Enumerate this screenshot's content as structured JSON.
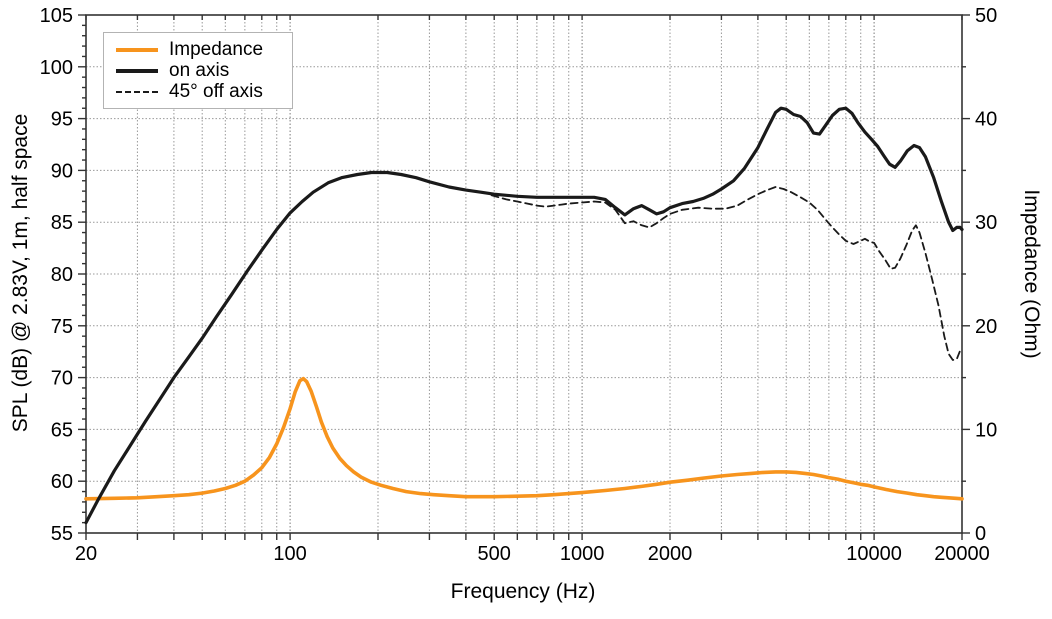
{
  "chart_data": {
    "type": "line",
    "title": "",
    "xlabel": "Frequency (Hz)",
    "ylabel_left": "SPL (dB) @ 2.83V, 1m, half space",
    "ylabel_right": "Impedance (Ohm)",
    "x_scale": "log",
    "xlim": [
      20,
      20000
    ],
    "ylim_left": [
      55,
      105
    ],
    "ylim_right": [
      0,
      50
    ],
    "grid": true,
    "legend_position": "top-left",
    "x_ticks_all": [
      20,
      30,
      40,
      50,
      60,
      70,
      80,
      90,
      100,
      200,
      300,
      400,
      500,
      600,
      700,
      800,
      900,
      1000,
      2000,
      3000,
      4000,
      5000,
      6000,
      7000,
      8000,
      9000,
      10000,
      20000
    ],
    "x_ticks_labeled": [
      20,
      100,
      500,
      1000,
      2000,
      10000,
      20000
    ],
    "x_decades": [
      100,
      1000,
      10000
    ],
    "y_ticks_left_major": [
      55,
      60,
      65,
      70,
      75,
      80,
      85,
      90,
      95,
      100,
      105
    ],
    "y_ticks_left_minor_step": 1,
    "y_ticks_right_major": [
      0,
      10,
      20,
      30,
      40,
      50
    ],
    "y_ticks_right_minor_step": 5,
    "series": [
      {
        "name": "Impedance",
        "axis": "right",
        "unit": "Ohm",
        "color": "#F7941D",
        "style": "solid",
        "width": 3.6,
        "points": [
          [
            20,
            3.3
          ],
          [
            25,
            3.35
          ],
          [
            30,
            3.4
          ],
          [
            35,
            3.5
          ],
          [
            40,
            3.6
          ],
          [
            45,
            3.7
          ],
          [
            50,
            3.85
          ],
          [
            55,
            4.05
          ],
          [
            60,
            4.3
          ],
          [
            65,
            4.6
          ],
          [
            70,
            5.0
          ],
          [
            75,
            5.6
          ],
          [
            80,
            6.3
          ],
          [
            85,
            7.3
          ],
          [
            90,
            8.6
          ],
          [
            95,
            10.2
          ],
          [
            100,
            12.0
          ],
          [
            104,
            13.6
          ],
          [
            108,
            14.7
          ],
          [
            111,
            14.9
          ],
          [
            114,
            14.6
          ],
          [
            118,
            13.7
          ],
          [
            123,
            12.2
          ],
          [
            128,
            10.7
          ],
          [
            134,
            9.3
          ],
          [
            140,
            8.2
          ],
          [
            148,
            7.2
          ],
          [
            156,
            6.5
          ],
          [
            165,
            5.9
          ],
          [
            175,
            5.4
          ],
          [
            190,
            4.9
          ],
          [
            205,
            4.6
          ],
          [
            225,
            4.3
          ],
          [
            250,
            4.0
          ],
          [
            280,
            3.8
          ],
          [
            310,
            3.7
          ],
          [
            350,
            3.6
          ],
          [
            400,
            3.5
          ],
          [
            450,
            3.5
          ],
          [
            500,
            3.5
          ],
          [
            600,
            3.55
          ],
          [
            700,
            3.6
          ],
          [
            800,
            3.7
          ],
          [
            900,
            3.8
          ],
          [
            1000,
            3.9
          ],
          [
            1200,
            4.1
          ],
          [
            1400,
            4.3
          ],
          [
            1600,
            4.5
          ],
          [
            1800,
            4.7
          ],
          [
            2000,
            4.9
          ],
          [
            2300,
            5.1
          ],
          [
            2600,
            5.3
          ],
          [
            3000,
            5.5
          ],
          [
            3400,
            5.65
          ],
          [
            3800,
            5.75
          ],
          [
            4200,
            5.85
          ],
          [
            4600,
            5.9
          ],
          [
            5000,
            5.9
          ],
          [
            5400,
            5.85
          ],
          [
            5800,
            5.75
          ],
          [
            6200,
            5.65
          ],
          [
            6600,
            5.5
          ],
          [
            7000,
            5.35
          ],
          [
            7500,
            5.2
          ],
          [
            8000,
            5.0
          ],
          [
            8500,
            4.85
          ],
          [
            9000,
            4.7
          ],
          [
            9500,
            4.6
          ],
          [
            10000,
            4.45
          ],
          [
            11000,
            4.2
          ],
          [
            12000,
            4.0
          ],
          [
            13000,
            3.85
          ],
          [
            14000,
            3.7
          ],
          [
            15000,
            3.6
          ],
          [
            16000,
            3.5
          ],
          [
            17000,
            3.45
          ],
          [
            18000,
            3.4
          ],
          [
            19000,
            3.35
          ],
          [
            20000,
            3.3
          ]
        ]
      },
      {
        "name": "on axis",
        "axis": "left",
        "unit": "dB",
        "color": "#1A1A1A",
        "style": "solid",
        "width": 3.2,
        "points": [
          [
            20,
            56.0
          ],
          [
            22,
            58.2
          ],
          [
            25,
            61.0
          ],
          [
            28,
            63.2
          ],
          [
            32,
            65.8
          ],
          [
            36,
            68.0
          ],
          [
            40,
            70.0
          ],
          [
            45,
            72.0
          ],
          [
            50,
            73.8
          ],
          [
            56,
            75.9
          ],
          [
            63,
            78.0
          ],
          [
            71,
            80.2
          ],
          [
            80,
            82.3
          ],
          [
            90,
            84.3
          ],
          [
            100,
            85.9
          ],
          [
            110,
            87.0
          ],
          [
            120,
            87.9
          ],
          [
            135,
            88.8
          ],
          [
            150,
            89.3
          ],
          [
            170,
            89.6
          ],
          [
            190,
            89.8
          ],
          [
            215,
            89.8
          ],
          [
            240,
            89.6
          ],
          [
            270,
            89.3
          ],
          [
            300,
            88.9
          ],
          [
            350,
            88.4
          ],
          [
            400,
            88.1
          ],
          [
            450,
            87.9
          ],
          [
            500,
            87.7
          ],
          [
            550,
            87.6
          ],
          [
            600,
            87.5
          ],
          [
            700,
            87.4
          ],
          [
            800,
            87.4
          ],
          [
            900,
            87.4
          ],
          [
            1000,
            87.4
          ],
          [
            1100,
            87.4
          ],
          [
            1200,
            87.2
          ],
          [
            1300,
            86.4
          ],
          [
            1400,
            85.7
          ],
          [
            1500,
            86.3
          ],
          [
            1600,
            86.6
          ],
          [
            1700,
            86.2
          ],
          [
            1800,
            85.8
          ],
          [
            1900,
            86.0
          ],
          [
            2000,
            86.4
          ],
          [
            2200,
            86.8
          ],
          [
            2400,
            87.0
          ],
          [
            2600,
            87.3
          ],
          [
            2800,
            87.7
          ],
          [
            3000,
            88.2
          ],
          [
            3300,
            89.0
          ],
          [
            3600,
            90.2
          ],
          [
            4000,
            92.2
          ],
          [
            4300,
            94.0
          ],
          [
            4600,
            95.6
          ],
          [
            4800,
            96.0
          ],
          [
            5000,
            95.9
          ],
          [
            5300,
            95.4
          ],
          [
            5600,
            95.2
          ],
          [
            5900,
            94.6
          ],
          [
            6200,
            93.6
          ],
          [
            6500,
            93.5
          ],
          [
            6800,
            94.3
          ],
          [
            7200,
            95.3
          ],
          [
            7600,
            95.9
          ],
          [
            8000,
            96.0
          ],
          [
            8400,
            95.5
          ],
          [
            8800,
            94.6
          ],
          [
            9300,
            93.7
          ],
          [
            9800,
            93.0
          ],
          [
            10300,
            92.3
          ],
          [
            10800,
            91.4
          ],
          [
            11300,
            90.6
          ],
          [
            11800,
            90.3
          ],
          [
            12300,
            90.9
          ],
          [
            13000,
            91.9
          ],
          [
            13700,
            92.4
          ],
          [
            14300,
            92.2
          ],
          [
            15000,
            91.3
          ],
          [
            16000,
            89.3
          ],
          [
            17000,
            87.0
          ],
          [
            18000,
            85.0
          ],
          [
            18600,
            84.2
          ],
          [
            19200,
            84.5
          ],
          [
            19700,
            84.5
          ],
          [
            20000,
            84.3
          ]
        ]
      },
      {
        "name": "45° off axis",
        "axis": "left",
        "unit": "dB",
        "color": "#1A1A1A",
        "style": "dashed",
        "width": 1.8,
        "points": [
          [
            490,
            87.6
          ],
          [
            550,
            87.2
          ],
          [
            600,
            87.0
          ],
          [
            650,
            86.8
          ],
          [
            700,
            86.6
          ],
          [
            750,
            86.5
          ],
          [
            800,
            86.6
          ],
          [
            850,
            86.7
          ],
          [
            900,
            86.8
          ],
          [
            1000,
            86.9
          ],
          [
            1100,
            87.0
          ],
          [
            1200,
            86.9
          ],
          [
            1300,
            86.2
          ],
          [
            1400,
            84.9
          ],
          [
            1500,
            85.1
          ],
          [
            1600,
            84.7
          ],
          [
            1700,
            84.5
          ],
          [
            1800,
            84.9
          ],
          [
            1900,
            85.4
          ],
          [
            2000,
            85.8
          ],
          [
            2200,
            86.2
          ],
          [
            2500,
            86.4
          ],
          [
            2800,
            86.3
          ],
          [
            3100,
            86.3
          ],
          [
            3400,
            86.6
          ],
          [
            3700,
            87.2
          ],
          [
            4000,
            87.7
          ],
          [
            4300,
            88.1
          ],
          [
            4600,
            88.4
          ],
          [
            4900,
            88.2
          ],
          [
            5200,
            87.9
          ],
          [
            5600,
            87.4
          ],
          [
            6000,
            86.9
          ],
          [
            6400,
            86.2
          ],
          [
            6800,
            85.3
          ],
          [
            7200,
            84.5
          ],
          [
            7600,
            83.8
          ],
          [
            8000,
            83.2
          ],
          [
            8500,
            82.9
          ],
          [
            9000,
            83.2
          ],
          [
            9300,
            83.4
          ],
          [
            9700,
            83.1
          ],
          [
            10000,
            83.0
          ],
          [
            10400,
            82.2
          ],
          [
            10900,
            81.4
          ],
          [
            11400,
            80.5
          ],
          [
            11800,
            80.6
          ],
          [
            12300,
            81.5
          ],
          [
            12900,
            82.8
          ],
          [
            13500,
            84.2
          ],
          [
            13900,
            84.7
          ],
          [
            14300,
            84.0
          ],
          [
            15000,
            82.0
          ],
          [
            15800,
            79.5
          ],
          [
            16600,
            77.0
          ],
          [
            17400,
            74.0
          ],
          [
            18000,
            72.3
          ],
          [
            18600,
            71.7
          ],
          [
            19200,
            71.8
          ],
          [
            19700,
            72.6
          ],
          [
            20000,
            72.7
          ]
        ]
      }
    ]
  },
  "legend": {
    "items": [
      {
        "label": "Impedance"
      },
      {
        "label": "on axis"
      },
      {
        "label": "45° off axis"
      }
    ]
  },
  "colors": {
    "impedance": "#F7941D",
    "curves_black": "#1A1A1A",
    "grid_minor": "#999999",
    "grid_decade": "#7a7a7a",
    "frame": "#333333",
    "background": "#ffffff"
  }
}
